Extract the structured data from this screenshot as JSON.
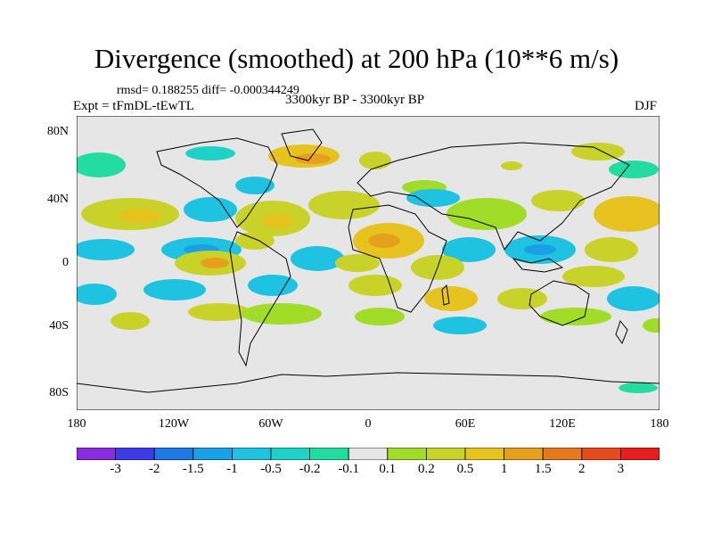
{
  "title": "Divergence (smoothed) at 200 hPa (10**6 m/s)",
  "stats": "rmsd= 0.188255 diff= -0.000344249",
  "experiment": "Expt = tFmDL-tEwTL",
  "period": "3300kyr BP - 3300kyr BP",
  "season": "DJF",
  "lat_labels": [
    "80N",
    "40N",
    "0",
    "40S",
    "80S"
  ],
  "lon_labels": [
    "180",
    "120W",
    "60W",
    "0",
    "60E",
    "120E",
    "180"
  ],
  "colorbar": {
    "labels": [
      "-3",
      "-2",
      "-1.5",
      "-1",
      "-0.5",
      "-0.2",
      "-0.1",
      "0.1",
      "0.2",
      "0.5",
      "1",
      "1.5",
      "2",
      "3"
    ],
    "colors": [
      "#8a2be2",
      "#3c3ce6",
      "#1e78e6",
      "#19a0e6",
      "#1ec3e1",
      "#1ed2c8",
      "#23dca0",
      "#e6e6e6",
      "#a0dc28",
      "#c8d228",
      "#e6c31e",
      "#e6a01e",
      "#e6781e",
      "#e64b1e",
      "#e61e1e"
    ]
  }
}
